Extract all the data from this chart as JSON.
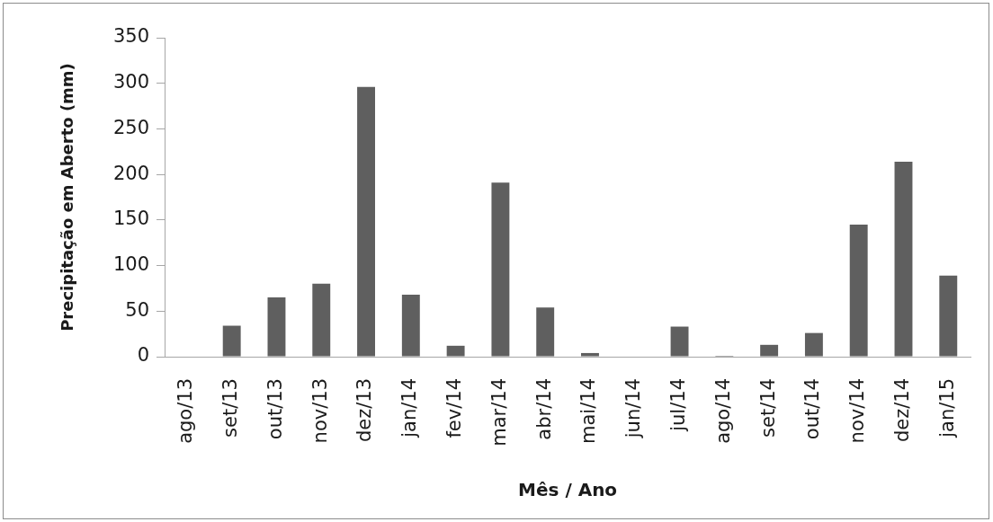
{
  "chart_data": {
    "type": "bar",
    "xlabel": "Mês / Ano",
    "ylabel": "Precipitação em Aberto (mm)",
    "categories": [
      "ago/13",
      "set/13",
      "out/13",
      "nov/13",
      "dez/13",
      "jan/14",
      "fev/14",
      "mar/14",
      "abr/14",
      "mai/14",
      "jun/14",
      "jul/14",
      "ago/14",
      "set/14",
      "out/14",
      "nov/14",
      "dez/14",
      "jan/15"
    ],
    "values": [
      0,
      34,
      65,
      80,
      296,
      68,
      12,
      191,
      54,
      4,
      0,
      33,
      1,
      13,
      26,
      145,
      214,
      89
    ],
    "color": "#5f5f5f",
    "ylim": [
      0,
      350
    ],
    "yticks": [
      0,
      50,
      100,
      150,
      200,
      250,
      300,
      350
    ],
    "grid": false,
    "legend": false
  }
}
